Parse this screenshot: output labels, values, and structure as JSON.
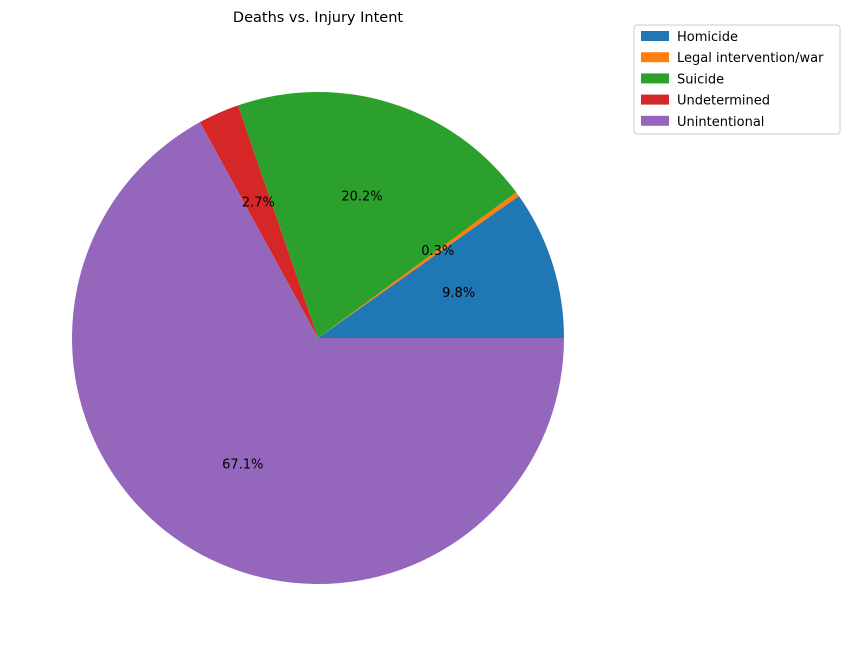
{
  "chart_data": {
    "type": "pie",
    "title": "Deaths vs. Injury Intent",
    "categories": [
      "Homicide",
      "Legal intervention/war",
      "Suicide",
      "Undetermined",
      "Unintentional"
    ],
    "values": [
      9.8,
      0.3,
      20.2,
      2.7,
      67.1
    ],
    "value_labels": [
      "9.8%",
      "0.3%",
      "20.2%",
      "2.7%",
      "67.1%"
    ],
    "colors": [
      "#1f77b4",
      "#ff7f0e",
      "#2ca02c",
      "#d62728",
      "#9467bd"
    ],
    "start_angle_deg": 0,
    "direction": "counterclockwise",
    "legend": "top-right"
  }
}
